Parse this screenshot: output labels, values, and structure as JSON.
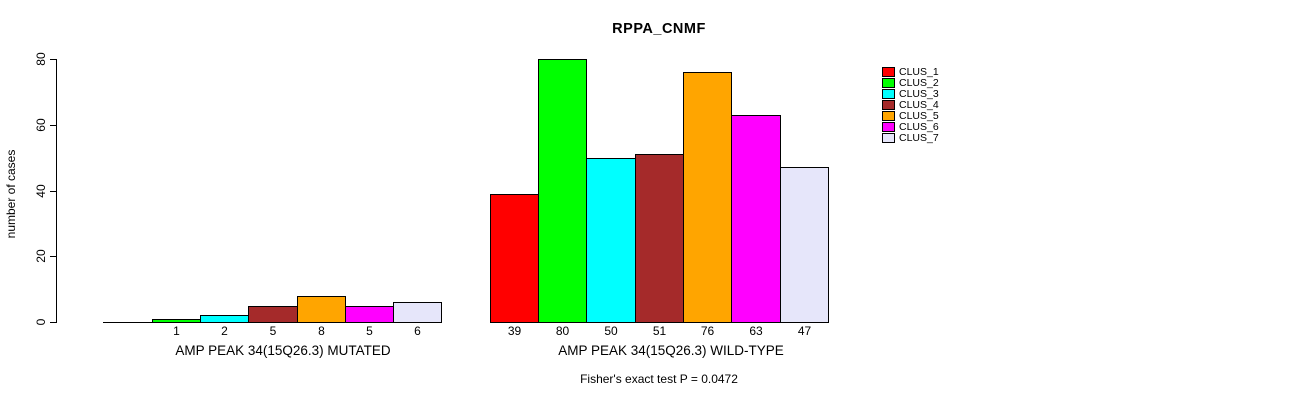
{
  "chart_data": {
    "type": "bar",
    "title": "RPPA_CNMF",
    "ylabel": "number of cases",
    "xlabel": "",
    "ylim": [
      0,
      80
    ],
    "yticks": [
      0,
      20,
      40,
      60,
      80
    ],
    "grid": false,
    "legend_position": "right",
    "bar_border_color": "#000000",
    "categories": [
      "AMP PEAK 34(15Q26.3) MUTATED",
      "AMP PEAK 34(15Q26.3) WILD-TYPE"
    ],
    "series": [
      {
        "name": "CLUS_1",
        "color": "#FF0000",
        "values": [
          0,
          39
        ]
      },
      {
        "name": "CLUS_2",
        "color": "#00FF00",
        "values": [
          1,
          80
        ]
      },
      {
        "name": "CLUS_3",
        "color": "#00FFFF",
        "values": [
          2,
          50
        ]
      },
      {
        "name": "CLUS_4",
        "color": "#A52A2A",
        "values": [
          5,
          51
        ]
      },
      {
        "name": "CLUS_5",
        "color": "#FFA500",
        "values": [
          8,
          76
        ]
      },
      {
        "name": "CLUS_6",
        "color": "#FF00FF",
        "values": [
          5,
          63
        ]
      },
      {
        "name": "CLUS_7",
        "color": "#E6E6FA",
        "values": [
          6,
          47
        ]
      }
    ],
    "bar_value_labels": [
      [
        "",
        "1",
        "2",
        "5",
        "8",
        "5",
        "6"
      ],
      [
        "39",
        "80",
        "50",
        "51",
        "76",
        "63",
        "47"
      ]
    ],
    "annotation": "Fisher's exact test P = 0.0472"
  }
}
